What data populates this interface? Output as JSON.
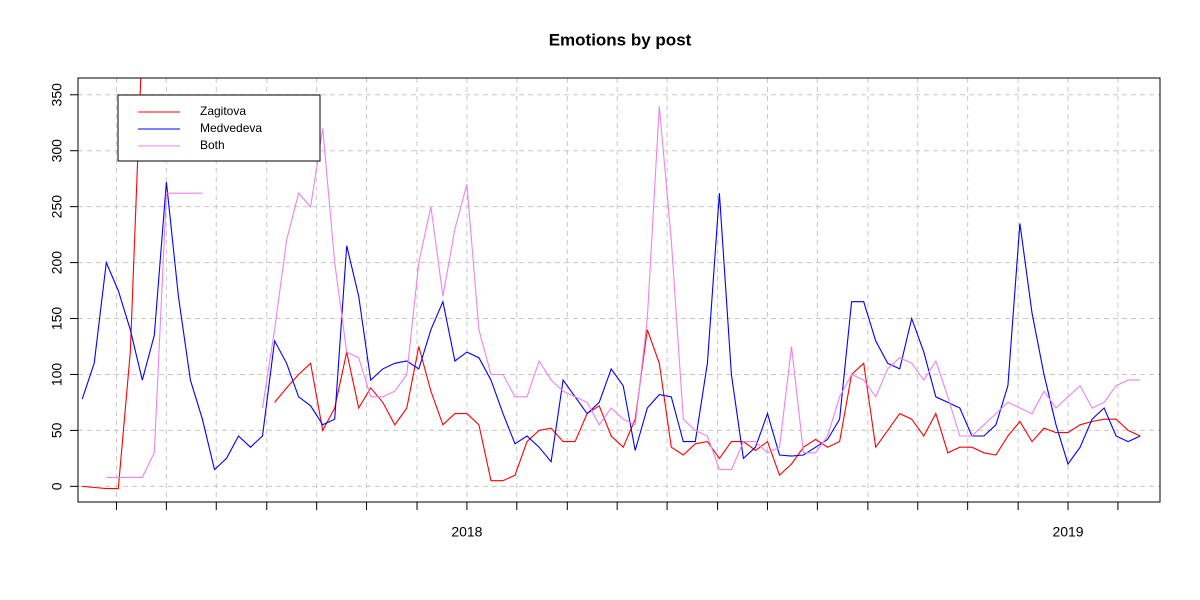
{
  "chart_data": {
    "type": "line",
    "title": "Emotions by post",
    "x": [
      2017.36,
      2017.38,
      2017.4,
      2017.42,
      2017.44,
      2017.46,
      2017.48,
      2017.5,
      2017.52,
      2017.54,
      2017.56,
      2017.58,
      2017.6,
      2017.62,
      2017.64,
      2017.66,
      2017.68,
      2017.7,
      2017.72,
      2017.74,
      2017.76,
      2017.78,
      2017.8,
      2017.82,
      2017.84,
      2017.86,
      2017.88,
      2017.9,
      2017.92,
      2017.94,
      2017.96,
      2017.98,
      2018,
      2018.02,
      2018.04,
      2018.06,
      2018.08,
      2018.1,
      2018.12,
      2018.14,
      2018.16,
      2018.18,
      2018.2,
      2018.22,
      2018.24,
      2018.26,
      2018.28,
      2018.3,
      2018.32,
      2018.34,
      2018.36,
      2018.38,
      2018.4,
      2018.42,
      2018.44,
      2018.46,
      2018.48,
      2018.5,
      2018.52,
      2018.54,
      2018.56,
      2018.58,
      2018.6,
      2018.62,
      2018.64,
      2018.66,
      2018.68,
      2018.7,
      2018.72,
      2018.74,
      2018.76,
      2018.78,
      2018.8,
      2018.82,
      2018.84,
      2018.86,
      2018.88,
      2018.9,
      2018.92,
      2018.94,
      2018.96,
      2018.98,
      2019,
      2019.02,
      2019.04,
      2019.06,
      2019.08,
      2019.1,
      2019.12
    ],
    "series": [
      {
        "name": "Zagitova",
        "color": "#ff0000",
        "values": [
          0,
          -1,
          -2,
          -2,
          120,
          400,
          null,
          null,
          null,
          null,
          null,
          null,
          null,
          null,
          null,
          null,
          75,
          88,
          100,
          110,
          50,
          70,
          120,
          70,
          88,
          75,
          55,
          70,
          125,
          85,
          55,
          65,
          65,
          55,
          5,
          5,
          10,
          40,
          50,
          52,
          40,
          40,
          65,
          72,
          45,
          35,
          60,
          140,
          110,
          35,
          28,
          38,
          40,
          25,
          40,
          40,
          32,
          40,
          10,
          20,
          35,
          42,
          35,
          40,
          100,
          110,
          35,
          50,
          65,
          60,
          45,
          65,
          30,
          35,
          35,
          30,
          28,
          45,
          58,
          40,
          52,
          48,
          48,
          55,
          58,
          60,
          60,
          50,
          45
        ]
      },
      {
        "name": "Medvedeva",
        "color": "#0000ff",
        "values": [
          78,
          110,
          200,
          175,
          140,
          95,
          135,
          272,
          170,
          95,
          60,
          15,
          25,
          45,
          35,
          45,
          130,
          110,
          80,
          72,
          55,
          60,
          215,
          170,
          95,
          105,
          110,
          112,
          105,
          140,
          165,
          112,
          120,
          115,
          95,
          65,
          38,
          45,
          35,
          22,
          95,
          80,
          65,
          75,
          105,
          90,
          32,
          70,
          82,
          80,
          40,
          40,
          110,
          262,
          100,
          25,
          35,
          65,
          28,
          27,
          28,
          35,
          42,
          60,
          165,
          165,
          130,
          110,
          105,
          150,
          120,
          80,
          75,
          70,
          45,
          45,
          55,
          90,
          235,
          155,
          100,
          55,
          20,
          35,
          60,
          70,
          45,
          40,
          45
        ]
      },
      {
        "name": "Both",
        "color": "#ee82ee",
        "values": [
          null,
          null,
          8,
          8,
          8,
          8,
          30,
          262,
          262,
          262,
          262,
          null,
          null,
          null,
          null,
          70,
          140,
          220,
          262,
          250,
          320,
          200,
          120,
          115,
          80,
          80,
          85,
          100,
          200,
          250,
          170,
          230,
          270,
          140,
          100,
          100,
          80,
          80,
          112,
          95,
          85,
          80,
          75,
          55,
          70,
          60,
          55,
          150,
          340,
          220,
          60,
          50,
          45,
          15,
          15,
          40,
          40,
          30,
          35,
          125,
          30,
          30,
          45,
          80,
          100,
          95,
          80,
          105,
          115,
          110,
          95,
          112,
          80,
          45,
          45,
          55,
          65,
          75,
          70,
          65,
          85,
          70,
          80,
          90,
          70,
          75,
          90,
          95,
          95
        ]
      }
    ],
    "xlim": [
      2017.353,
      2019.153
    ],
    "ylim": [
      -14,
      365
    ],
    "xticks": [
      2018,
      2019
    ],
    "xminorticks": [
      2017.417,
      2017.5,
      2017.583,
      2017.667,
      2017.75,
      2017.833,
      2017.917,
      2018.083,
      2018.167,
      2018.25,
      2018.333,
      2018.417,
      2018.5,
      2018.583,
      2018.667,
      2018.75,
      2018.833,
      2018.917,
      2019.083
    ],
    "yticks": [
      0,
      50,
      100,
      150,
      200,
      250,
      300,
      350
    ],
    "grid": true,
    "legend": "top-left"
  }
}
